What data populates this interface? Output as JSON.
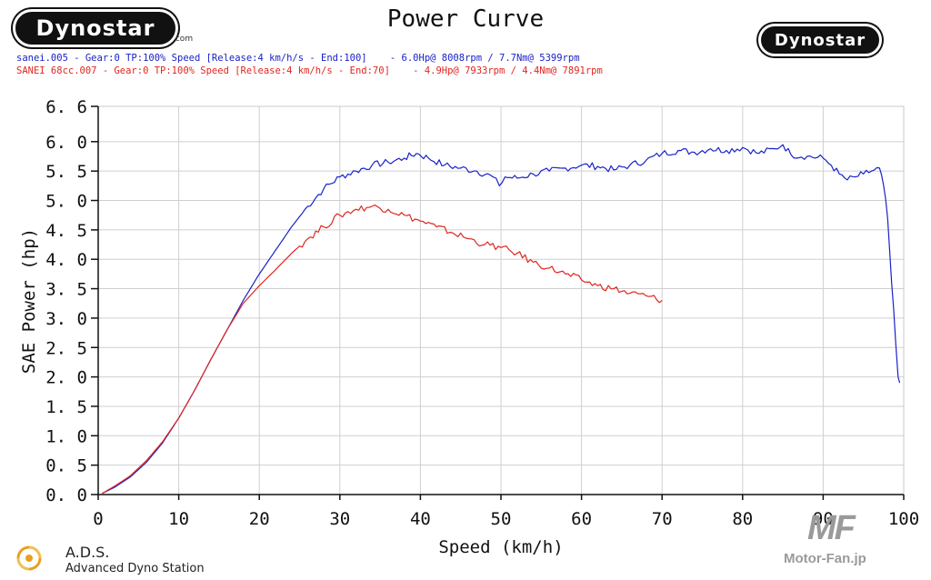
{
  "logos": {
    "left_text": "Dynostar",
    "left_suffix": ".com",
    "right_text": "Dynostar"
  },
  "header": {
    "title": "Power Curve"
  },
  "legend": {
    "line1": "sanei.005 - Gear:0 TP:100% Speed [Release:4 km/h/s - End:100]    - 6.0Hp@ 8008rpm / 7.7Nm@ 5399rpm",
    "line2": "SANEI 68cc.007 - Gear:0 TP:100% Speed [Release:4 km/h/s - End:70]    - 4.9Hp@ 7933rpm / 4.4Nm@ 7891rpm",
    "color1": "#1a22c8",
    "color2": "#e0261f"
  },
  "footer": {
    "ads_title": "A.D.S.",
    "ads_subtitle": "Advanced Dyno Station",
    "watermark": "Motor-Fan.jp",
    "watermark_mark": "MF"
  },
  "chart_data": {
    "type": "line",
    "title": "Power Curve",
    "xlabel": "Speed (km/h)",
    "ylabel": "SAE Power (hp)",
    "xlim": [
      0,
      100
    ],
    "ylim": [
      0,
      6.6
    ],
    "grid": true,
    "x_ticks": [
      0,
      10,
      20,
      30,
      40,
      50,
      60,
      70,
      80,
      90,
      100
    ],
    "x_tick_labels": [
      "0",
      "10",
      "20",
      "30",
      "40",
      "50",
      "60",
      "70",
      "80",
      "90",
      "100"
    ],
    "y_ticks": [
      0,
      0.5,
      1.0,
      1.5,
      2.0,
      2.5,
      3.0,
      3.5,
      4.0,
      4.5,
      5.0,
      5.5,
      6.0,
      6.6
    ],
    "y_tick_labels": [
      "0. 0",
      "0. 5",
      "1. 0",
      "1. 5",
      "2. 0",
      "2. 5",
      "3. 0",
      "3. 5",
      "4. 0",
      "4. 5",
      "5. 0",
      "5. 5",
      "6. 0",
      "6. 6"
    ],
    "series": [
      {
        "name": "sanei.005",
        "color": "#1a22c8",
        "x": [
          0.5,
          2,
          4,
          6,
          8,
          10,
          12,
          14,
          16,
          18,
          20,
          22,
          24,
          26,
          28,
          30,
          32,
          34,
          36,
          38,
          39.5,
          41,
          43,
          45,
          47,
          49,
          49.8,
          50.5,
          52,
          54,
          56,
          58,
          60,
          62,
          64,
          66,
          68,
          70,
          72,
          74,
          76,
          78,
          80,
          82,
          84,
          85,
          86,
          88,
          90,
          91,
          92,
          93,
          94,
          95,
          96,
          97,
          97.5,
          98,
          98.5,
          99,
          99.3,
          99.5
        ],
        "y": [
          0.02,
          0.12,
          0.3,
          0.55,
          0.88,
          1.3,
          1.78,
          2.3,
          2.8,
          3.3,
          3.75,
          4.15,
          4.55,
          4.9,
          5.2,
          5.4,
          5.5,
          5.6,
          5.65,
          5.72,
          5.8,
          5.72,
          5.6,
          5.55,
          5.5,
          5.4,
          5.25,
          5.4,
          5.38,
          5.45,
          5.5,
          5.55,
          5.6,
          5.58,
          5.52,
          5.6,
          5.68,
          5.8,
          5.85,
          5.82,
          5.88,
          5.85,
          5.9,
          5.8,
          5.88,
          5.95,
          5.78,
          5.75,
          5.72,
          5.6,
          5.45,
          5.35,
          5.4,
          5.45,
          5.5,
          5.55,
          5.25,
          4.7,
          3.6,
          2.6,
          2.0,
          1.9
        ]
      },
      {
        "name": "SANEI 68cc.007",
        "color": "#e0261f",
        "x": [
          0.5,
          2,
          4,
          6,
          8,
          10,
          12,
          14,
          16,
          18,
          20,
          22,
          24,
          26,
          28,
          30,
          32,
          34,
          36,
          38,
          40,
          42,
          44,
          46,
          48,
          50,
          52,
          54,
          56,
          58,
          60,
          62,
          64,
          66,
          68,
          70
        ],
        "y": [
          0.02,
          0.14,
          0.32,
          0.58,
          0.9,
          1.3,
          1.78,
          2.3,
          2.8,
          3.25,
          3.55,
          3.82,
          4.1,
          4.35,
          4.55,
          4.75,
          4.85,
          4.9,
          4.85,
          4.75,
          4.65,
          4.55,
          4.45,
          4.35,
          4.25,
          4.2,
          4.1,
          3.95,
          3.85,
          3.75,
          3.65,
          3.55,
          3.5,
          3.42,
          3.38,
          3.3
        ]
      }
    ]
  }
}
